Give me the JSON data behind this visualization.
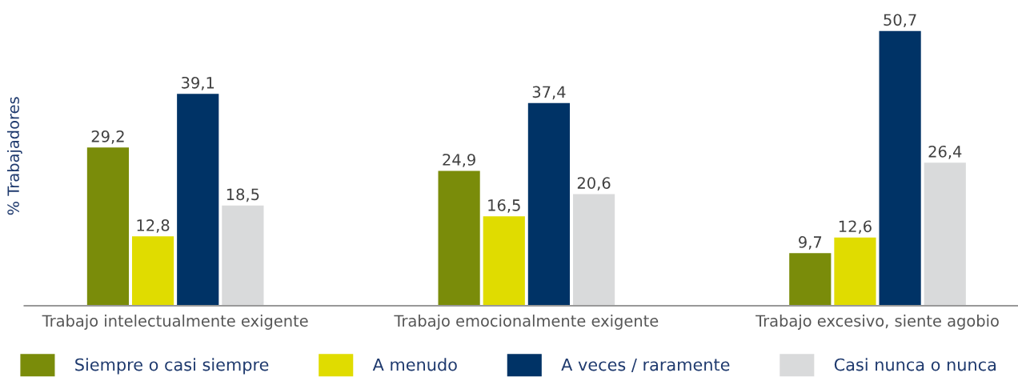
{
  "chart_data": {
    "type": "bar",
    "ylabel": "% Trabajadores",
    "categories": [
      "Trabajo intelectualmente exigente",
      "Trabajo emocionalmente exigente",
      "Trabajo excesivo, siente agobio"
    ],
    "series": [
      {
        "name": "Siempre o casi siempre",
        "color": "#7a8c0a",
        "values": [
          29.2,
          24.9,
          9.7
        ],
        "value_labels": [
          "29,2",
          "24,9",
          "9,7"
        ]
      },
      {
        "name": "A menudo",
        "color": "#e0dc00",
        "values": [
          12.8,
          16.5,
          12.6
        ],
        "value_labels": [
          "12,8",
          "16,5",
          "12,6"
        ]
      },
      {
        "name": "A veces / raramente",
        "color": "#003366",
        "values": [
          39.1,
          37.4,
          50.7
        ],
        "value_labels": [
          "39,1",
          "37,4",
          "50,7"
        ]
      },
      {
        "name": "Casi nunca o nunca",
        "color": "#d9dadb",
        "values": [
          18.5,
          20.6,
          26.4
        ],
        "value_labels": [
          "18,5",
          "20,6",
          "26,4"
        ]
      }
    ],
    "grid": false,
    "legend": "bottom"
  }
}
